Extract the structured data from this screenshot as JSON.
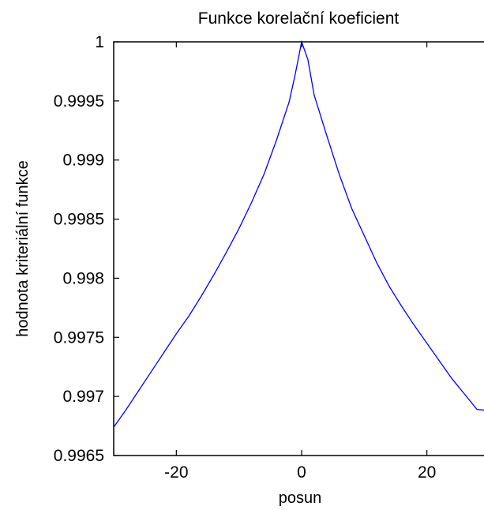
{
  "chart_data": {
    "type": "line",
    "title": "Funkce korelační koeficient",
    "xlabel": "posun",
    "ylabel": "hodnota kriteriální funkce",
    "xlim": [
      -30,
      30
    ],
    "ylim": [
      0.9965,
      1
    ],
    "xticks": [
      -20,
      0,
      20
    ],
    "xtick_labels": [
      "-20",
      "0",
      "20"
    ],
    "yticks": [
      0.9965,
      0.997,
      0.9975,
      0.998,
      0.9985,
      0.999,
      0.9995,
      1
    ],
    "ytick_labels": [
      "0.9965",
      "0.997",
      "0.9975",
      "0.998",
      "0.9985",
      "0.999",
      "0.9995",
      "1"
    ],
    "grid": false,
    "colors": {
      "line": "#0000ff",
      "axes": "#000000"
    },
    "series": [
      {
        "x": [
          -30,
          -28,
          -26,
          -24,
          -22,
          -20,
          -18,
          -16,
          -14,
          -12,
          -10,
          -8,
          -6,
          -4,
          -2,
          -1,
          0,
          1,
          2,
          4,
          6,
          8,
          10,
          12,
          14,
          16,
          18,
          20,
          22,
          24,
          26,
          28,
          30
        ],
        "values": [
          0.99674,
          0.99689,
          0.99705,
          0.99721,
          0.99737,
          0.99753,
          0.99768,
          0.99785,
          0.99803,
          0.99822,
          0.99842,
          0.99864,
          0.99888,
          0.99917,
          0.99949,
          0.99973,
          1.0,
          0.99985,
          0.99955,
          0.99921,
          0.99888,
          0.99859,
          0.99836,
          0.99813,
          0.99793,
          0.99776,
          0.9976,
          0.99745,
          0.9973,
          0.99715,
          0.99702,
          0.99689,
          0.99688
        ]
      }
    ]
  }
}
